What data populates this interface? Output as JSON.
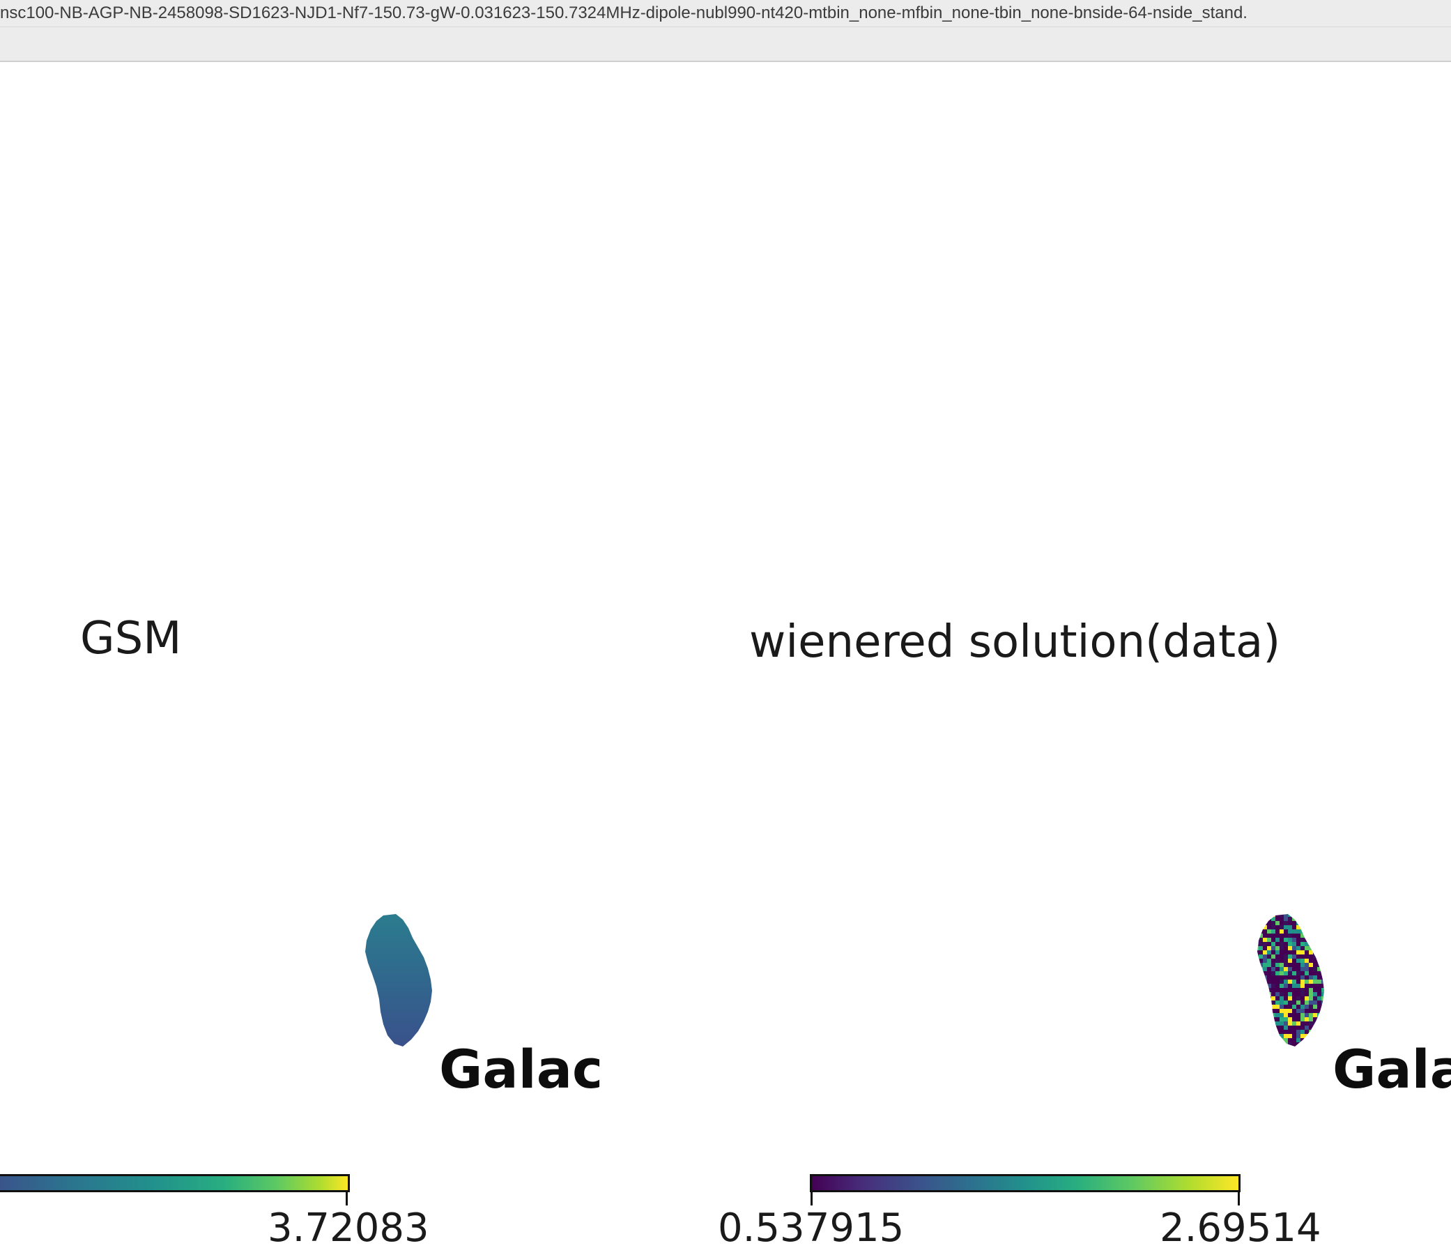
{
  "window": {
    "title": "nsc100-NB-AGP-NB-2458098-SD1623-NJD1-Nf7-150.73-gW-0.031623-150.7324MHz-dipole-nubl990-nt420-mtbin_none-mfbin_none-tbin_none-bnside-64-nside_stand."
  },
  "panels": [
    {
      "title": "GSM",
      "projection_label": "Galac",
      "colorbar": {
        "colormap": "viridis",
        "min_label": "",
        "max_label": "3.72083"
      }
    },
    {
      "title": "wienered solution(data)",
      "projection_label": "Gala",
      "colorbar": {
        "colormap": "viridis",
        "min_label": "0.537915",
        "max_label": "2.69514"
      }
    }
  ],
  "colors": {
    "viridis_start": "#440154",
    "viridis_q1": "#3b528b",
    "viridis_mid": "#21918c",
    "viridis_q3": "#5ec962",
    "viridis_end": "#fde725",
    "gsm_patch": "#2e6a8e",
    "wiener_patch_base": "#3a0f5a"
  }
}
